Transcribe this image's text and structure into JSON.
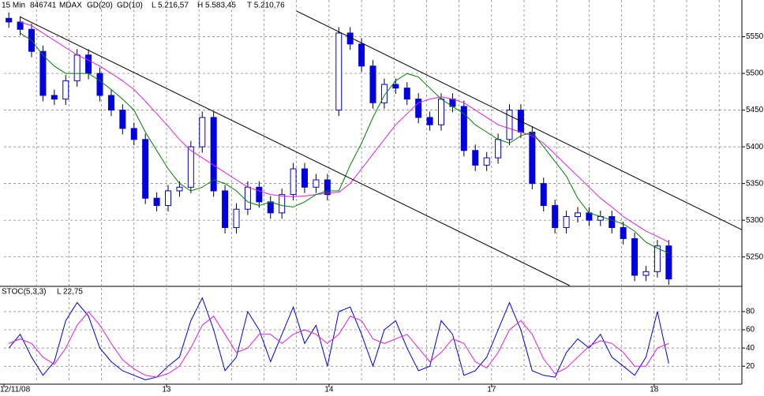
{
  "chart_data": [
    {
      "type": "candlestick",
      "period": "15 Min",
      "id": "846741",
      "symbol": "MDAX",
      "stats": [
        "L 5.216,57",
        "H 5.583,45",
        "T 5.210,76"
      ],
      "x": [
        0.03,
        0.1,
        0.17,
        0.24,
        0.31,
        0.38,
        0.45,
        0.52,
        0.59,
        0.66,
        0.73,
        0.8,
        0.87,
        0.94,
        1.01,
        1.08,
        1.15,
        1.22,
        1.29,
        1.36,
        1.43,
        1.5,
        1.57,
        1.64,
        1.71,
        1.78,
        1.85,
        1.92,
        1.99,
        2.06,
        2.13,
        2.2,
        2.27,
        2.34,
        2.41,
        2.48,
        2.55,
        2.62,
        2.69,
        2.76,
        2.83,
        2.9,
        2.97,
        3.04,
        3.11,
        3.18,
        3.25,
        3.32,
        3.39,
        3.46,
        3.53,
        3.6,
        3.67,
        3.74,
        3.81,
        3.88,
        3.95,
        4.02,
        4.09
      ],
      "open": [
        5575,
        5570,
        5560,
        5530,
        5470,
        5465,
        5490,
        5525,
        5500,
        5470,
        5450,
        5425,
        5410,
        5330,
        5320,
        5340,
        5345,
        5400,
        5440,
        5340,
        5290,
        5315,
        5345,
        5325,
        5310,
        5335,
        5370,
        5345,
        5355,
        5450,
        5555,
        5540,
        5510,
        5460,
        5485,
        5480,
        5465,
        5440,
        5430,
        5465,
        5455,
        5395,
        5375,
        5385,
        5410,
        5450,
        5420,
        5350,
        5320,
        5290,
        5305,
        5310,
        5300,
        5305,
        5290,
        5275,
        5225,
        5230,
        5265
      ],
      "high": [
        5583,
        5578,
        5568,
        5538,
        5478,
        5498,
        5533,
        5533,
        5508,
        5478,
        5458,
        5433,
        5418,
        5338,
        5348,
        5353,
        5408,
        5448,
        5448,
        5348,
        5323,
        5353,
        5353,
        5333,
        5343,
        5378,
        5378,
        5363,
        5363,
        5563,
        5563,
        5548,
        5518,
        5493,
        5493,
        5488,
        5473,
        5448,
        5473,
        5473,
        5463,
        5403,
        5393,
        5418,
        5458,
        5458,
        5428,
        5358,
        5328,
        5313,
        5318,
        5318,
        5313,
        5313,
        5298,
        5283,
        5238,
        5273,
        5273
      ],
      "low": [
        5562,
        5552,
        5522,
        5462,
        5457,
        5457,
        5482,
        5492,
        5462,
        5442,
        5417,
        5402,
        5322,
        5312,
        5312,
        5332,
        5337,
        5392,
        5332,
        5282,
        5282,
        5307,
        5317,
        5302,
        5302,
        5327,
        5337,
        5337,
        5327,
        5442,
        5532,
        5502,
        5452,
        5452,
        5472,
        5457,
        5432,
        5422,
        5422,
        5447,
        5387,
        5367,
        5367,
        5377,
        5402,
        5412,
        5342,
        5312,
        5282,
        5282,
        5297,
        5292,
        5292,
        5282,
        5267,
        5217,
        5217,
        5222,
        5212
      ],
      "close": [
        5570,
        5560,
        5530,
        5470,
        5465,
        5490,
        5525,
        5500,
        5470,
        5450,
        5425,
        5410,
        5330,
        5320,
        5340,
        5345,
        5400,
        5440,
        5340,
        5290,
        5315,
        5345,
        5325,
        5310,
        5335,
        5370,
        5345,
        5355,
        5335,
        5555,
        5540,
        5510,
        5460,
        5485,
        5480,
        5465,
        5440,
        5430,
        5465,
        5455,
        5395,
        5375,
        5385,
        5410,
        5450,
        5420,
        5350,
        5320,
        5290,
        5305,
        5310,
        5300,
        5305,
        5290,
        5275,
        5225,
        5230,
        5265,
        5220
      ],
      "candle_color": "#0000e0",
      "series": [
        {
          "name": "GD(20)",
          "color": "#e020e0",
          "values": [
            null,
            5570,
            5565,
            5555,
            5545,
            5535,
            5525,
            5518,
            5510,
            5500,
            5490,
            5478,
            5462,
            5445,
            5428,
            5410,
            5395,
            5385,
            5375,
            5365,
            5355,
            5345,
            5340,
            5335,
            5333,
            5332,
            5333,
            5335,
            5337,
            5338,
            5350,
            5370,
            5390,
            5410,
            5430,
            5445,
            5460,
            5465,
            5468,
            5465,
            5460,
            5450,
            5440,
            5430,
            5425,
            5420,
            5415,
            5405,
            5390,
            5375,
            5360,
            5345,
            5330,
            5318,
            5305,
            5295,
            5285,
            5278,
            5270
          ]
        },
        {
          "name": "GD(10)",
          "color": "#008000",
          "values": [
            null,
            5555,
            5545,
            5525,
            5510,
            5500,
            5500,
            5500,
            5490,
            5478,
            5465,
            5450,
            5420,
            5395,
            5370,
            5350,
            5340,
            5345,
            5355,
            5350,
            5340,
            5325,
            5320,
            5325,
            5320,
            5318,
            5325,
            5335,
            5340,
            5340,
            5375,
            5405,
            5440,
            5470,
            5490,
            5500,
            5495,
            5480,
            5465,
            5455,
            5445,
            5430,
            5420,
            5410,
            5405,
            5415,
            5420,
            5400,
            5380,
            5360,
            5330,
            5310,
            5305,
            5300,
            5295,
            5285,
            5270,
            5262,
            5255
          ]
        }
      ],
      "trendlines": [
        {
          "x": [
            0.1,
            3.48
          ],
          "y": [
            5577,
            5211
          ]
        },
        {
          "x": [
            1.8,
            4.54
          ],
          "y": [
            5585,
            5287
          ]
        }
      ],
      "xlim": [
        0,
        4.54
      ],
      "ylim": [
        5211,
        5600
      ],
      "yticks": [
        5250,
        5300,
        5350,
        5400,
        5450,
        5500,
        5550
      ],
      "xgrid": [
        0.2,
        0.4,
        0.6,
        0.8,
        1.0,
        1.2,
        1.4,
        1.6,
        1.8,
        2.0,
        2.2,
        2.4,
        2.6,
        2.8,
        3.0,
        3.2,
        3.4,
        3.6,
        3.8,
        4.0,
        4.2,
        4.4
      ],
      "grid": true
    },
    {
      "type": "oscillator",
      "title": "STOC(5,3,3)",
      "last": "L 22,75",
      "x": [
        0.03,
        0.1,
        0.17,
        0.24,
        0.31,
        0.38,
        0.45,
        0.52,
        0.59,
        0.66,
        0.73,
        0.8,
        0.87,
        0.94,
        1.01,
        1.08,
        1.15,
        1.22,
        1.29,
        1.36,
        1.43,
        1.5,
        1.57,
        1.64,
        1.71,
        1.78,
        1.85,
        1.92,
        1.99,
        2.06,
        2.13,
        2.2,
        2.27,
        2.34,
        2.41,
        2.48,
        2.55,
        2.62,
        2.69,
        2.76,
        2.83,
        2.9,
        2.97,
        3.04,
        3.11,
        3.18,
        3.25,
        3.32,
        3.39,
        3.46,
        3.53,
        3.6,
        3.67,
        3.74,
        3.81,
        3.88,
        3.95,
        4.02,
        4.09
      ],
      "series": [
        {
          "color": "#0000e0",
          "values": [
            40,
            55,
            30,
            10,
            25,
            70,
            90,
            75,
            40,
            25,
            15,
            10,
            5,
            8,
            20,
            30,
            70,
            95,
            60,
            15,
            30,
            80,
            60,
            25,
            55,
            85,
            45,
            65,
            20,
            80,
            85,
            55,
            20,
            60,
            70,
            40,
            15,
            20,
            70,
            55,
            10,
            15,
            30,
            60,
            90,
            60,
            15,
            10,
            8,
            35,
            50,
            40,
            55,
            30,
            20,
            10,
            30,
            80,
            23
          ]
        },
        {
          "color": "#e020e0",
          "values": [
            45,
            50,
            45,
            30,
            22,
            40,
            65,
            80,
            65,
            45,
            27,
            17,
            10,
            8,
            12,
            20,
            40,
            65,
            75,
            55,
            35,
            40,
            55,
            55,
            45,
            55,
            60,
            55,
            45,
            55,
            75,
            70,
            50,
            45,
            50,
            55,
            40,
            25,
            35,
            50,
            45,
            25,
            18,
            35,
            60,
            70,
            55,
            28,
            12,
            18,
            30,
            42,
            48,
            45,
            35,
            20,
            20,
            40,
            45
          ]
        }
      ],
      "xlim": [
        0,
        4.54
      ],
      "ylim": [
        2,
        106
      ],
      "yticks": [
        20,
        40,
        60,
        80
      ],
      "xticks": [
        {
          "value": 0,
          "label": "12/11/08"
        },
        {
          "value": 1,
          "label": "13"
        },
        {
          "value": 2,
          "label": "14"
        },
        {
          "value": 3,
          "label": "17"
        },
        {
          "value": 4,
          "label": "18"
        }
      ],
      "xgrid": [
        0.2,
        0.4,
        0.6,
        0.8,
        1.0,
        1.2,
        1.4,
        1.6,
        1.8,
        2.0,
        2.2,
        2.4,
        2.6,
        2.8,
        3.0,
        3.2,
        3.4,
        3.6,
        3.8,
        4.0,
        4.2,
        4.4
      ],
      "grid": true
    }
  ]
}
